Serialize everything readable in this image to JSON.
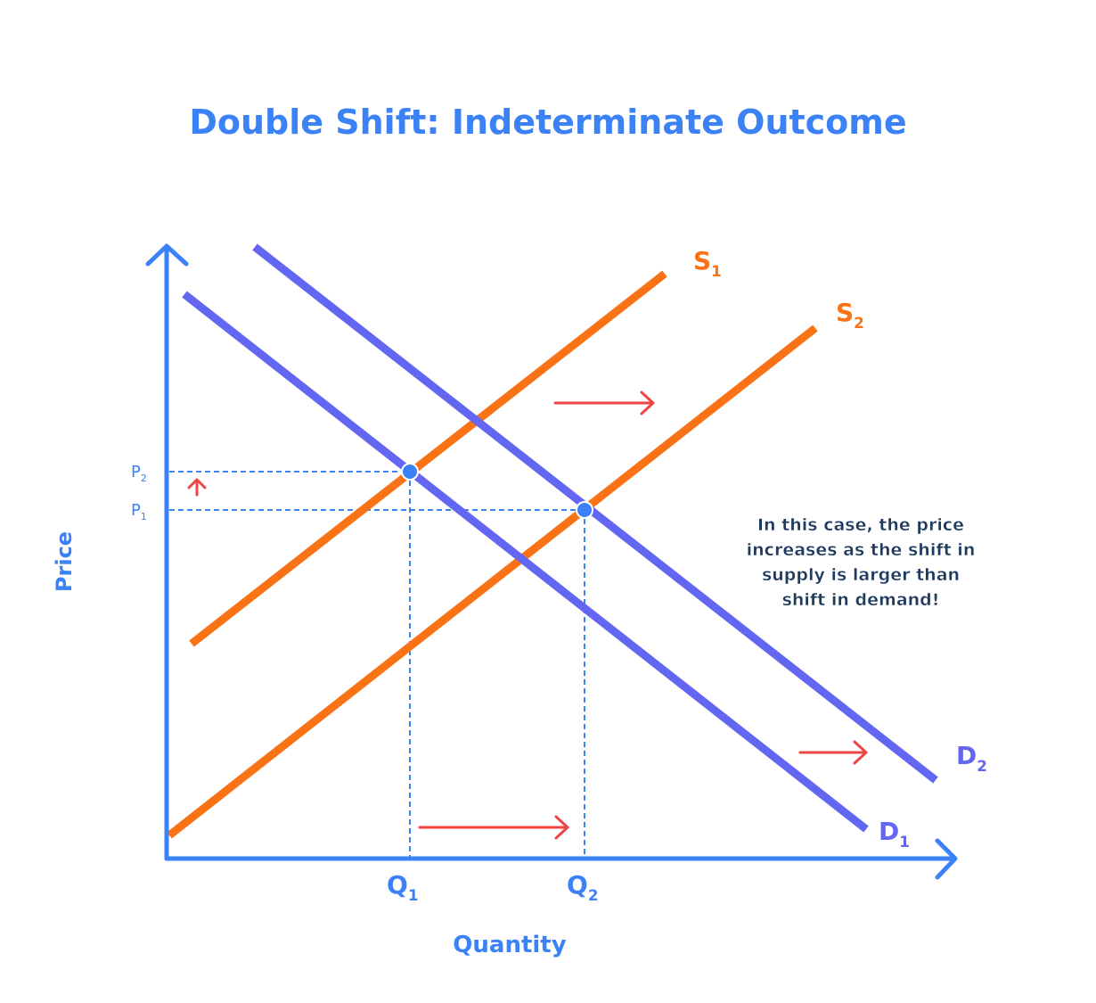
{
  "title": "Double Shift: Indeterminate Outcome",
  "axes": {
    "y_label": "Price",
    "x_label": "Quantity"
  },
  "curves": {
    "s1": {
      "letter": "S",
      "sub": "1"
    },
    "s2": {
      "letter": "S",
      "sub": "2"
    },
    "d1": {
      "letter": "D",
      "sub": "1"
    },
    "d2": {
      "letter": "D",
      "sub": "2"
    }
  },
  "prices": {
    "p1": {
      "letter": "P",
      "sub": "1"
    },
    "p2": {
      "letter": "P",
      "sub": "2"
    }
  },
  "quantities": {
    "q1": {
      "letter": "Q",
      "sub": "1"
    },
    "q2": {
      "letter": "Q",
      "sub": "2"
    }
  },
  "annotation": [
    "In this case, the price",
    "increases as the shift in",
    "supply is larger than",
    "shift in demand!"
  ]
}
